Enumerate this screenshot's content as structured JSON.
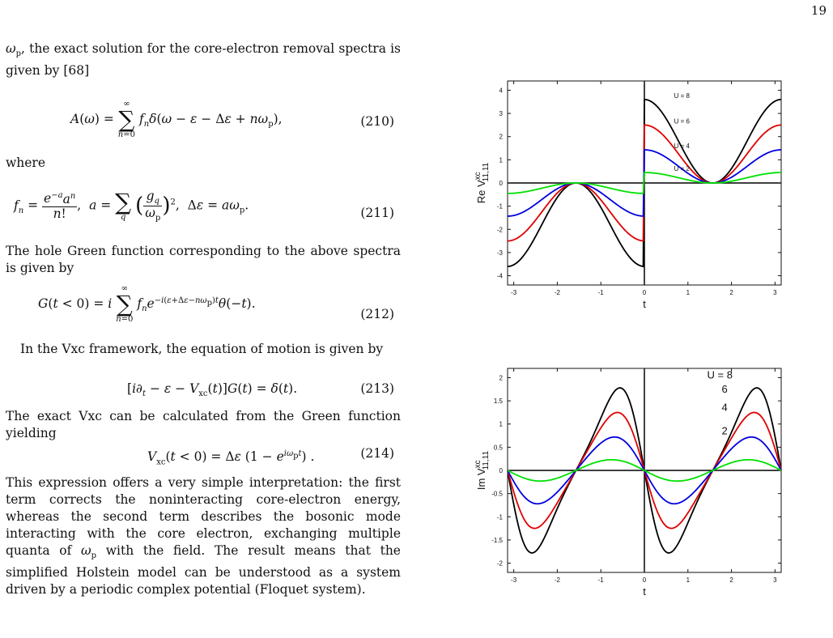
{
  "page_number": "19",
  "text": {
    "p_intro": ", the exact solution for the core-electron removal spectra is given by [68]",
    "omega_p": "ωp",
    "where": "where",
    "p_hole": "The hole Green function corresponding to the above spectra is given by",
    "p_vxc": "In the Vxc framework, the equation of motion is given by",
    "p_exact": "The exact Vxc can be calculated from the Green function yielding",
    "p_final_a": "This expression offers a very simple interpretation: the first term corrects the noninteracting core-electron energy, whereas the second term describes the bosonic mode interacting with the core electron, exchanging multiple quanta of ",
    "p_final_b": " with the field. The result means that the simplified Holstein model can be understood as a system driven by a periodic complex potential (Floquet system)."
  },
  "equations": [
    {
      "number": "(210)"
    },
    {
      "number": "(211)"
    },
    {
      "number": "(212)"
    },
    {
      "number": "(213)"
    },
    {
      "number": "(214)"
    }
  ],
  "chart_data": [
    {
      "type": "line",
      "title": "",
      "xlabel": "t",
      "ylabel": "Re V",
      "ylabel_sup": "xc",
      "ylabel_sub": "11,11",
      "xlim": [
        -3.14159,
        3.14159
      ],
      "ylim": [
        -4.4,
        4.4
      ],
      "xticks": [
        "-3",
        "-2",
        "-1",
        "0",
        "1",
        "2",
        "3"
      ],
      "yticks": [
        "4",
        "3",
        "2",
        "1",
        "0",
        "-1",
        "-2",
        "-3",
        "-4"
      ],
      "series": [
        {
          "name": "U = 8",
          "color": "#000000",
          "amplitude": 3.6
        },
        {
          "name": "U = 6",
          "color": "#e00000",
          "amplitude": 2.5
        },
        {
          "name": "U = 4",
          "color": "#0000e0",
          "amplitude": 1.43
        },
        {
          "name": "U = 2",
          "color": "#00e000",
          "amplitude": 0.45
        }
      ]
    },
    {
      "type": "line",
      "title": "",
      "xlabel": "t",
      "ylabel": "Im V",
      "ylabel_sup": "xc",
      "ylabel_sub": "11,11",
      "xlim": [
        -3.14159,
        3.14159
      ],
      "ylim": [
        -2.2,
        2.2
      ],
      "xticks": [
        "-3",
        "-2",
        "-1",
        "0",
        "1",
        "2",
        "3"
      ],
      "yticks": [
        "2",
        "1.5",
        "1",
        "0.5",
        "0",
        "-0.5",
        "-1",
        "-1.5",
        "-2"
      ],
      "series": [
        {
          "name": "U = 8",
          "color": "#000000",
          "amplitude": 1.78
        },
        {
          "name": "6",
          "color": "#e00000",
          "amplitude": 1.25
        },
        {
          "name": "4",
          "color": "#0000e0",
          "amplitude": 0.72
        },
        {
          "name": "2",
          "color": "#00e000",
          "amplitude": 0.23
        }
      ]
    }
  ]
}
